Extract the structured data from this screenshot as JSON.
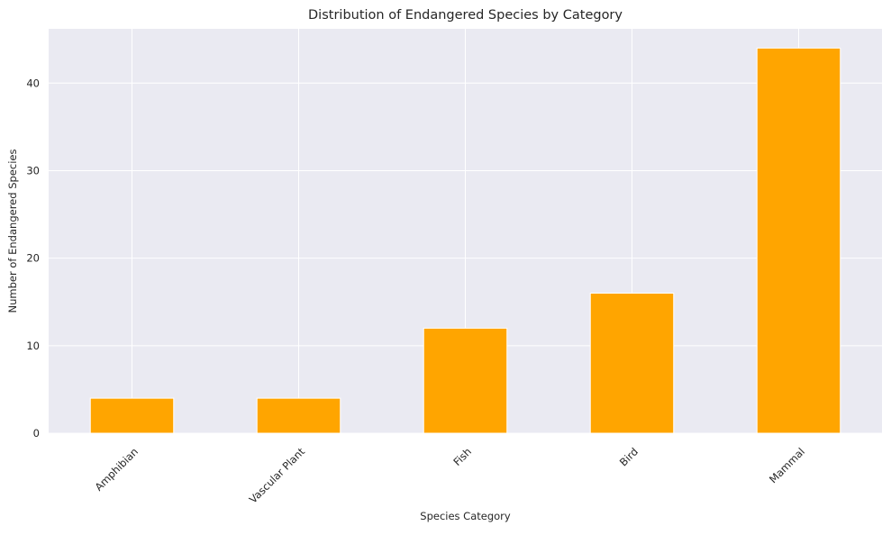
{
  "chart_data": {
    "type": "bar",
    "title": "Distribution of Endangered Species by Category",
    "xlabel": "Species Category",
    "ylabel": "Number of Endangered Species",
    "categories": [
      "Amphibian",
      "Vascular Plant",
      "Fish",
      "Bird",
      "Mammal"
    ],
    "values": [
      4,
      4,
      12,
      16,
      44
    ],
    "ylim": [
      0,
      46.2
    ],
    "yticks": [
      0,
      10,
      20,
      30,
      40
    ],
    "grid": true,
    "bar_color": "#FFA500",
    "background_color": "#EAEAF2",
    "grid_color": "#FFFFFF"
  }
}
